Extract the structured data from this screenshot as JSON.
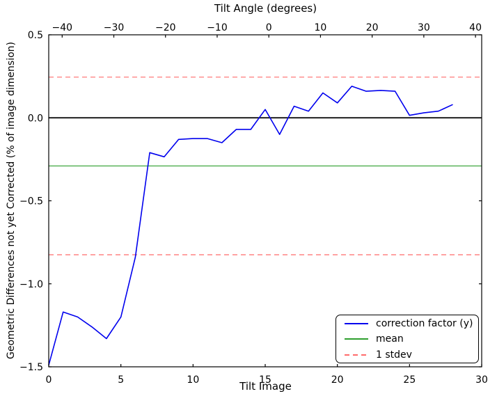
{
  "figure": {
    "top_axis_title": "Tilt Angle (degrees)",
    "x_axis_label": "Tilt Image",
    "y_axis_label": "Geometric Differences not yet Corrected (% of image dimension)"
  },
  "legend": {
    "items": [
      {
        "label": "correction factor (y)",
        "color": "#0000ee",
        "style": "solid"
      },
      {
        "label": "mean",
        "color": "#2e9e2e",
        "style": "solid"
      },
      {
        "label": "1 stdev",
        "color": "#ff6b6b",
        "style": "dashed"
      }
    ]
  },
  "chart_data": {
    "type": "line",
    "title": "Tilt Angle (degrees)",
    "xlabel": "Tilt Image",
    "ylabel": "Geometric Differences not yet Corrected (% of image dimension)",
    "xlim": [
      0,
      30
    ],
    "ylim": [
      -1.5,
      0.5
    ],
    "x_ticks": [
      0,
      5,
      10,
      15,
      20,
      25,
      30
    ],
    "y_ticks": [
      0.5,
      0.0,
      -0.5,
      -1.0,
      -1.5
    ],
    "top_axis": {
      "title": "Tilt Angle (degrees)",
      "lim": [
        -42.6,
        41.2
      ],
      "ticks": [
        -40,
        -30,
        -20,
        -10,
        0,
        10,
        20,
        30,
        40
      ]
    },
    "grid": false,
    "legend_position": "lower right",
    "series": [
      {
        "name": "correction factor (y)",
        "color": "#0000ee",
        "style": "solid",
        "x": [
          0,
          1,
          2,
          3,
          4,
          5,
          6,
          7,
          8,
          9,
          10,
          11,
          12,
          13,
          14,
          15,
          16,
          17,
          18,
          19,
          20,
          21,
          22,
          23,
          24,
          25,
          26,
          27,
          28
        ],
        "y": [
          -1.49,
          -1.17,
          -1.2,
          -1.26,
          -1.33,
          -1.2,
          -0.84,
          -0.21,
          -0.235,
          -0.13,
          -0.125,
          -0.125,
          -0.15,
          -0.07,
          -0.07,
          0.05,
          -0.1,
          0.07,
          0.04,
          0.15,
          0.09,
          0.19,
          0.16,
          0.165,
          0.16,
          0.015,
          0.03,
          0.04,
          0.08
        ]
      }
    ],
    "reference_lines": [
      {
        "name": "zero",
        "y": 0.0,
        "color": "#000000",
        "style": "solid",
        "width": 1.8
      },
      {
        "name": "mean",
        "y": -0.29,
        "color": "#2e9e2e",
        "style": "solid",
        "width": 1.2
      },
      {
        "name": "plus-1-stdev",
        "y": 0.245,
        "color": "#ff6b6b",
        "style": "dashed",
        "width": 1.2
      },
      {
        "name": "minus-1-stdev",
        "y": -0.825,
        "color": "#ff6b6b",
        "style": "dashed",
        "width": 1.2
      }
    ]
  }
}
